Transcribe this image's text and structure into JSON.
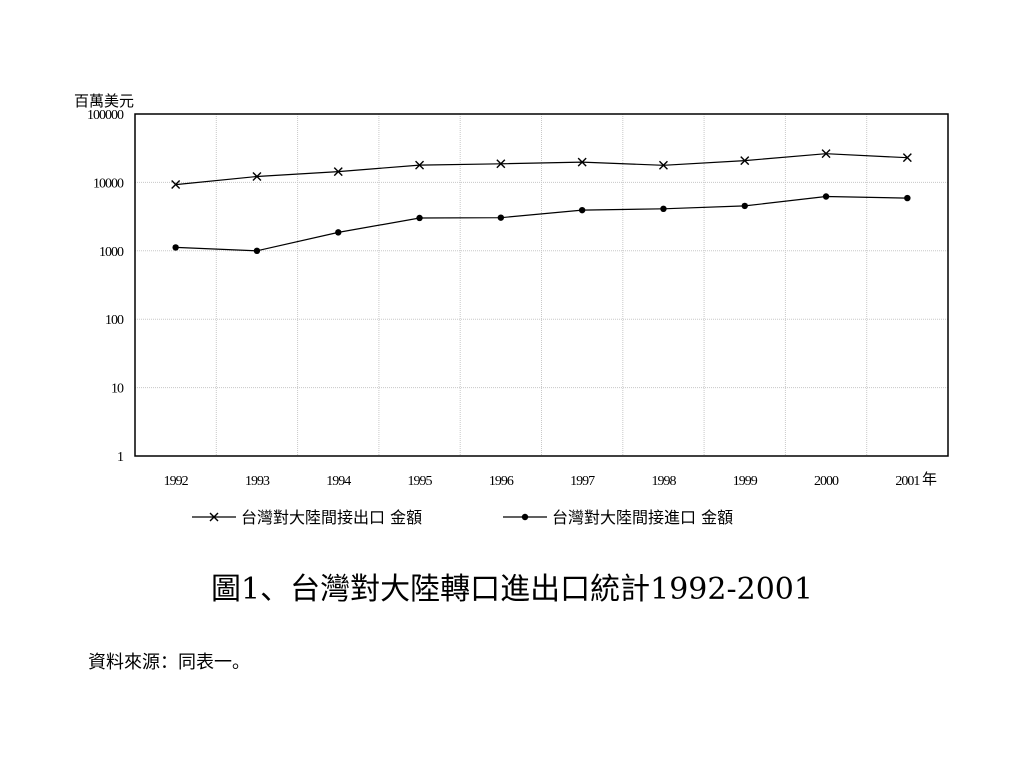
{
  "chart_data": {
    "type": "line",
    "y_scale": "log",
    "y_unit": "百萬美元",
    "x_unit": "年",
    "ylim": [
      1,
      100000
    ],
    "y_ticks": [
      "1",
      "10",
      "100",
      "1000",
      "10000",
      "100000"
    ],
    "categories": [
      "1992",
      "1993",
      "1994",
      "1995",
      "1996",
      "1997",
      "1998",
      "1999",
      "2000",
      "2001"
    ],
    "grid": true,
    "legend_position": "bottom",
    "series": [
      {
        "name": "台灣對大陸間接出口 金額",
        "marker": "x",
        "values": [
          9300,
          12200,
          14400,
          17900,
          18700,
          19800,
          17800,
          20800,
          26300,
          23000
        ]
      },
      {
        "name": "台灣對大陸間接進口 金額",
        "marker": "dot",
        "values": [
          1120,
          1000,
          1860,
          3020,
          3050,
          3930,
          4110,
          4530,
          6220,
          5900
        ]
      }
    ]
  },
  "caption": "圖1、台灣對大陸轉口進出口統計1992-2001",
  "source_note": "資料來源：同表一。"
}
